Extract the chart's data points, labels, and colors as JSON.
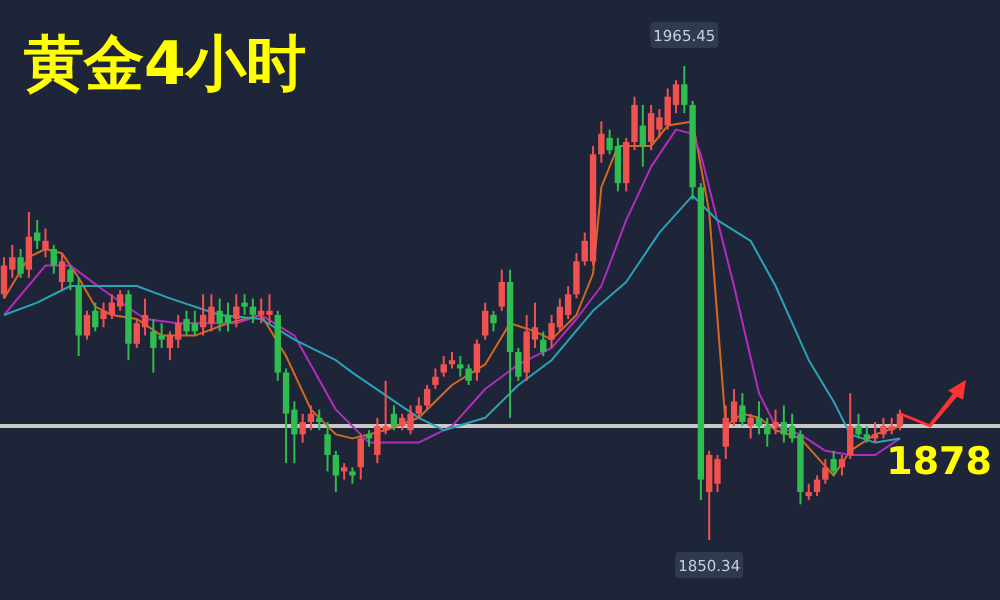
{
  "chart_data": {
    "type": "candlestick",
    "title": "黄金4小时",
    "categories": [
      null,
      null,
      null,
      null,
      null,
      null,
      null,
      null,
      null,
      null,
      null,
      null,
      null,
      null,
      null,
      null,
      null,
      null,
      null,
      null,
      null,
      null,
      null,
      null,
      null,
      null,
      null,
      null,
      null,
      null,
      null,
      null,
      null,
      null,
      null,
      null,
      null,
      null,
      null,
      null,
      null,
      null,
      null,
      null,
      null,
      null,
      null,
      null,
      null,
      null,
      null,
      null,
      null,
      null,
      null,
      null,
      null,
      null,
      null,
      null,
      null,
      null,
      null,
      null,
      null,
      null,
      null,
      null,
      null,
      null,
      null,
      null,
      null,
      null,
      null,
      null,
      null,
      null,
      null,
      null,
      null,
      null,
      null,
      null,
      null,
      null,
      null,
      null,
      null,
      null,
      null,
      null,
      null,
      null,
      null,
      null,
      null,
      null,
      null,
      null,
      null,
      null,
      null,
      null,
      null,
      null,
      null,
      null,
      null
    ],
    "ohlc": [
      [
        1910,
        1919,
        1909,
        1917
      ],
      [
        1916,
        1922,
        1914,
        1919
      ],
      [
        1919,
        1921,
        1914,
        1915
      ],
      [
        1916,
        1930,
        1914,
        1924
      ],
      [
        1925,
        1928,
        1921,
        1923
      ],
      [
        1921,
        1926,
        1919,
        1923
      ],
      [
        1921,
        1922,
        1915,
        1917
      ],
      [
        1913,
        1920,
        1911,
        1918
      ],
      [
        1916,
        1917,
        1911,
        1913
      ],
      [
        1912,
        1914,
        1895,
        1900
      ],
      [
        1900,
        1906,
        1899,
        1905
      ],
      [
        1906,
        1908,
        1901,
        1902
      ],
      [
        1904,
        1908,
        1902,
        1906
      ],
      [
        1905,
        1910,
        1904,
        1908
      ],
      [
        1907,
        1911,
        1906,
        1910
      ],
      [
        1910,
        1911,
        1894,
        1898
      ],
      [
        1898,
        1904,
        1897,
        1903
      ],
      [
        1902,
        1909,
        1900,
        1905
      ],
      [
        1901,
        1904,
        1891,
        1897
      ],
      [
        1900,
        1903,
        1897,
        1899
      ],
      [
        1897,
        1901,
        1894,
        1900
      ],
      [
        1899,
        1905,
        1897,
        1903
      ],
      [
        1904,
        1906,
        1900,
        1901
      ],
      [
        1903,
        1906,
        1900,
        1901
      ],
      [
        1902,
        1910,
        1900,
        1905
      ],
      [
        1903,
        1910,
        1901,
        1907
      ],
      [
        1906,
        1909,
        1901,
        1903
      ],
      [
        1905,
        1908,
        1901,
        1903
      ],
      [
        1904,
        1910,
        1902,
        1907
      ],
      [
        1908,
        1910,
        1905,
        1907
      ],
      [
        1907,
        1909,
        1903,
        1905
      ],
      [
        1905,
        1909,
        1903,
        1906
      ],
      [
        1905,
        1910,
        1903,
        1906
      ],
      [
        1905,
        1906,
        1889,
        1891
      ],
      [
        1891,
        1892,
        1869,
        1881
      ],
      [
        1882,
        1884,
        1869,
        1876
      ],
      [
        1876,
        1881,
        1874,
        1879
      ],
      [
        1879,
        1883,
        1877,
        1881
      ],
      [
        1880,
        1882,
        1877,
        1879
      ],
      [
        1876,
        1879,
        1867,
        1871
      ],
      [
        1871,
        1872,
        1862,
        1866
      ],
      [
        1867,
        1869,
        1865,
        1868
      ],
      [
        1867,
        1868,
        1864,
        1866
      ],
      [
        1868,
        1876,
        1865,
        1875
      ],
      [
        1876,
        1877,
        1873,
        1875
      ],
      [
        1871,
        1880,
        1869,
        1878
      ],
      [
        1877,
        1889,
        1876,
        1878
      ],
      [
        1881,
        1883,
        1877,
        1878
      ],
      [
        1878,
        1881,
        1877,
        1880
      ],
      [
        1877,
        1883,
        1876,
        1881
      ],
      [
        1881,
        1885,
        1880,
        1883
      ],
      [
        1883,
        1888,
        1882,
        1887
      ],
      [
        1888,
        1892,
        1887,
        1890
      ],
      [
        1891,
        1895,
        1890,
        1893
      ],
      [
        1893,
        1896,
        1892,
        1894
      ],
      [
        1893,
        1895,
        1890,
        1892
      ],
      [
        1892,
        1893,
        1888,
        1889
      ],
      [
        1891,
        1899,
        1889,
        1898
      ],
      [
        1900,
        1908,
        1899,
        1906
      ],
      [
        1905,
        1906,
        1901,
        1903
      ],
      [
        1907,
        1916,
        1906,
        1913
      ],
      [
        1913,
        1916,
        1880,
        1896
      ],
      [
        1896,
        1897,
        1889,
        1890
      ],
      [
        1891,
        1905,
        1889,
        1901
      ],
      [
        1899,
        1908,
        1897,
        1902
      ],
      [
        1899,
        1901,
        1895,
        1896
      ],
      [
        1899,
        1905,
        1897,
        1903
      ],
      [
        1902,
        1909,
        1901,
        1907
      ],
      [
        1905,
        1912,
        1904,
        1910
      ],
      [
        1910,
        1920,
        1909,
        1918
      ],
      [
        1918,
        1925,
        1917,
        1923
      ],
      [
        1918,
        1946,
        1917,
        1944
      ],
      [
        1944,
        1952,
        1942,
        1949
      ],
      [
        1948,
        1950,
        1944,
        1945
      ],
      [
        1946,
        1948,
        1935,
        1937
      ],
      [
        1937,
        1948,
        1935,
        1947
      ],
      [
        1947,
        1958,
        1945,
        1956
      ],
      [
        1951,
        1956,
        1941,
        1946
      ],
      [
        1947,
        1956,
        1945,
        1954
      ],
      [
        1950,
        1955,
        1948,
        1953
      ],
      [
        1951,
        1960,
        1950,
        1958
      ],
      [
        1956,
        1962,
        1954,
        1961
      ],
      [
        1961,
        1965.45,
        1954,
        1956
      ],
      [
        1956,
        1957,
        1933,
        1936
      ],
      [
        1936,
        1937,
        1860,
        1865
      ],
      [
        1862,
        1872,
        1850.34,
        1871
      ],
      [
        1864,
        1871,
        1862,
        1870
      ],
      [
        1873,
        1883,
        1870,
        1880
      ],
      [
        1879,
        1887,
        1878,
        1884
      ],
      [
        1883,
        1886,
        1878,
        1879
      ],
      [
        1878,
        1881,
        1875,
        1880
      ],
      [
        1880,
        1884,
        1876,
        1878
      ],
      [
        1878,
        1880,
        1873,
        1876
      ],
      [
        1878,
        1882,
        1876,
        1879
      ],
      [
        1879,
        1883,
        1874,
        1876
      ],
      [
        1878,
        1881,
        1874,
        1875
      ],
      [
        1876,
        1877,
        1859,
        1862
      ],
      [
        1861,
        1864,
        1860,
        1862
      ],
      [
        1862,
        1866,
        1861,
        1865
      ],
      [
        1865,
        1870,
        1864,
        1868
      ],
      [
        1870,
        1872,
        1866,
        1867
      ],
      [
        1868,
        1871,
        1866,
        1870
      ],
      [
        1871,
        1886,
        1870,
        1878
      ],
      [
        1878,
        1881,
        1875,
        1876
      ],
      [
        1876,
        1878,
        1874,
        1875
      ],
      [
        1875,
        1879,
        1874,
        1876
      ],
      [
        1876,
        1880,
        1875,
        1878
      ],
      [
        1877,
        1880,
        1876,
        1878
      ],
      [
        1878,
        1882,
        1877,
        1881
      ]
    ],
    "series": [
      {
        "type": "line",
        "color": "#d2691e",
        "values": [
          1909,
          null,
          null,
          1919,
          null,
          1921,
          null,
          1920,
          null,
          1914,
          null,
          1907,
          null,
          1905,
          null,
          null,
          1904,
          null,
          null,
          1900,
          null,
          null,
          null,
          1900,
          null,
          null,
          null,
          1903,
          null,
          null,
          null,
          1905,
          null,
          null,
          1895,
          null,
          null,
          1882,
          null,
          null,
          1876,
          null,
          1875,
          null,
          null,
          null,
          1877,
          null,
          null,
          null,
          1880,
          null,
          null,
          null,
          1888,
          null,
          null,
          null,
          1893,
          null,
          null,
          1903,
          null,
          null,
          1901,
          null,
          1899,
          null,
          null,
          1905,
          null,
          1915,
          1936,
          null,
          1946,
          null,
          null,
          null,
          1946,
          null,
          1951,
          null,
          null,
          1952,
          null,
          1930,
          null,
          1878,
          null,
          1881,
          null,
          1880,
          null,
          1877,
          null,
          null,
          1875,
          null,
          null,
          null,
          1866,
          null,
          1872,
          null,
          null,
          1876,
          null,
          null,
          1878
        ]
      },
      {
        "type": "line",
        "color": "#b42bbf",
        "values": [
          1905,
          null,
          null,
          null,
          null,
          1917,
          null,
          null,
          1917,
          null,
          null,
          null,
          1911,
          null,
          null,
          null,
          null,
          1904,
          null,
          null,
          null,
          1903,
          null,
          null,
          null,
          null,
          null,
          null,
          1903,
          null,
          null,
          1905,
          null,
          null,
          null,
          1900,
          null,
          null,
          null,
          null,
          1882,
          null,
          null,
          null,
          1874,
          null,
          null,
          null,
          null,
          null,
          1874,
          null,
          null,
          null,
          1878,
          null,
          null,
          null,
          1887,
          null,
          null,
          null,
          1893,
          null,
          null,
          null,
          1897,
          null,
          null,
          1904,
          null,
          null,
          1912,
          null,
          null,
          1928,
          null,
          null,
          1941,
          null,
          null,
          1950,
          null,
          1949,
          1944,
          null,
          null,
          null,
          1912,
          null,
          null,
          1886,
          null,
          1878,
          null,
          null,
          1876,
          null,
          null,
          1872,
          null,
          null,
          1871,
          null,
          null,
          1871,
          null,
          null,
          1875
        ]
      },
      {
        "type": "line",
        "color": "#2aa3b5",
        "values": [
          1905,
          null,
          null,
          null,
          1908,
          null,
          null,
          null,
          1912,
          null,
          null,
          null,
          null,
          null,
          null,
          null,
          1912,
          null,
          null,
          null,
          1909,
          null,
          null,
          null,
          null,
          null,
          1905,
          null,
          null,
          null,
          null,
          1904,
          null,
          null,
          null,
          1899,
          null,
          null,
          null,
          null,
          1894,
          null,
          1891,
          null,
          null,
          null,
          null,
          null,
          null,
          null,
          1880,
          null,
          null,
          1877,
          null,
          null,
          null,
          null,
          1880,
          null,
          null,
          null,
          1888,
          null,
          null,
          null,
          1894,
          null,
          null,
          null,
          null,
          1906,
          null,
          null,
          null,
          1913,
          null,
          null,
          null,
          1925,
          null,
          null,
          null,
          1934,
          null,
          null,
          1928,
          null,
          null,
          null,
          1923,
          null,
          null,
          1912,
          null,
          null,
          null,
          1894,
          null,
          null,
          1884,
          null,
          1876,
          null,
          null,
          1874,
          null,
          null,
          1875
        ]
      }
    ],
    "ref_lines": [
      {
        "axis": "y",
        "value": 1878,
        "label": "1878",
        "color": "#c8c8c8"
      }
    ],
    "annotations": [
      {
        "text": "1965.45",
        "y": 1965.45
      },
      {
        "text": "1850.34",
        "y": 1850.34
      }
    ]
  }
}
